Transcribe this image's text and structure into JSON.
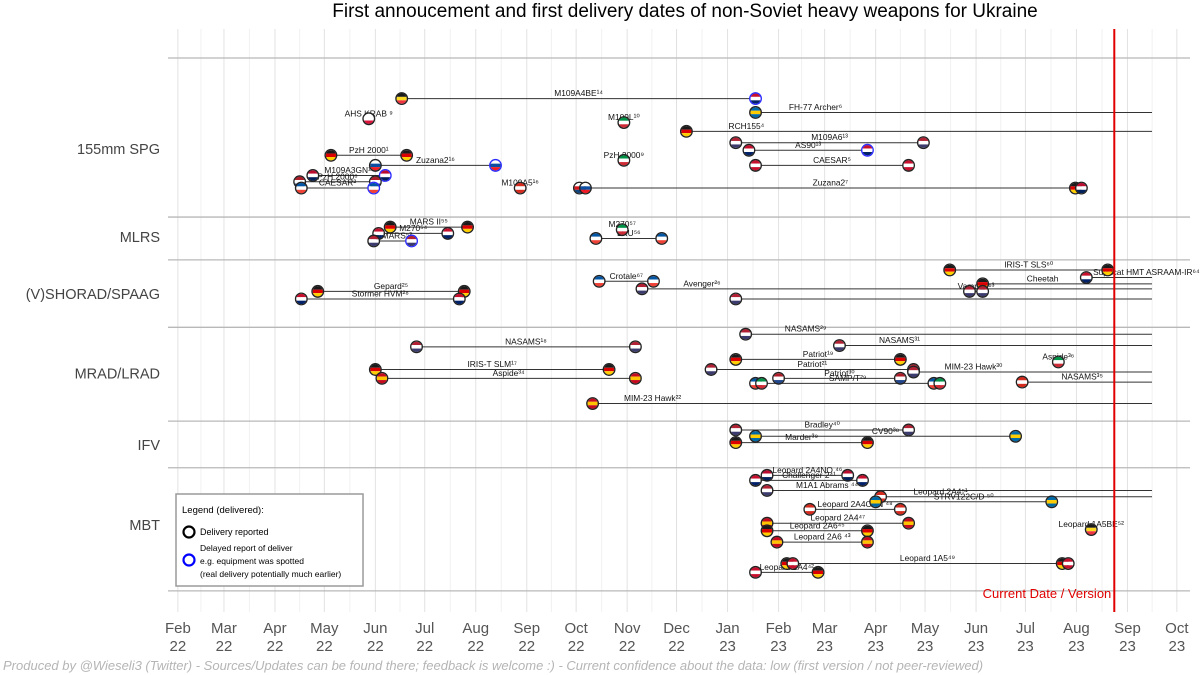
{
  "chart_data": {
    "type": "timeline",
    "title": "First annoucement and first delivery dates of non-Soviet heavy weapons for Ukraine",
    "x_ticks": [
      {
        "month": "Feb",
        "year": "22",
        "date": "2022-02-01"
      },
      {
        "month": "Mar",
        "year": "22",
        "date": "2022-03-01"
      },
      {
        "month": "Apr",
        "year": "22",
        "date": "2022-04-01"
      },
      {
        "month": "May",
        "year": "22",
        "date": "2022-05-01"
      },
      {
        "month": "Jun",
        "year": "22",
        "date": "2022-06-01"
      },
      {
        "month": "Jul",
        "year": "22",
        "date": "2022-07-01"
      },
      {
        "month": "Aug",
        "year": "22",
        "date": "2022-08-01"
      },
      {
        "month": "Sep",
        "year": "22",
        "date": "2022-09-01"
      },
      {
        "month": "Oct",
        "year": "22",
        "date": "2022-10-01"
      },
      {
        "month": "Nov",
        "year": "22",
        "date": "2022-11-01"
      },
      {
        "month": "Dec",
        "year": "22",
        "date": "2022-12-01"
      },
      {
        "month": "Jan",
        "year": "23",
        "date": "2023-01-01"
      },
      {
        "month": "Feb",
        "year": "23",
        "date": "2023-02-01"
      },
      {
        "month": "Mar",
        "year": "23",
        "date": "2023-03-01"
      },
      {
        "month": "Apr",
        "year": "23",
        "date": "2023-04-01"
      },
      {
        "month": "May",
        "year": "23",
        "date": "2023-05-01"
      },
      {
        "month": "Jun",
        "year": "23",
        "date": "2023-06-01"
      },
      {
        "month": "Jul",
        "year": "23",
        "date": "2023-07-01"
      },
      {
        "month": "Aug",
        "year": "23",
        "date": "2023-08-01"
      },
      {
        "month": "Sep",
        "year": "23",
        "date": "2023-09-01"
      },
      {
        "month": "Oct",
        "year": "23",
        "date": "2023-10-01"
      }
    ],
    "xlim": [
      "2022-01-26",
      "2023-10-09"
    ],
    "current_date": "2023-08-24",
    "current_label": "Current Date / Version",
    "categories": [
      {
        "name": "155mm SPG",
        "rows": [
          0,
          10
        ]
      },
      {
        "name": "MLRS",
        "rows": [
          10.8,
          13.2
        ]
      },
      {
        "name": "(V)SHORAD/SPAAG",
        "rows": [
          14.4,
          18.6
        ]
      },
      {
        "name": "MRAD/LRAD",
        "rows": [
          19.7,
          25.9
        ]
      },
      {
        "name": "IFV",
        "rows": [
          27.3,
          29.7
        ]
      },
      {
        "name": "MBT",
        "rows": [
          30.9,
          38.8
        ]
      }
    ],
    "flag_colors": {
      "DE": [
        "#1a1a1a",
        "#dd0000",
        "#ffce00"
      ],
      "US": [
        "#b22234",
        "#ffffff",
        "#3c3b6e"
      ],
      "UK": [
        "#c8102e",
        "#ffffff",
        "#012169"
      ],
      "FR": [
        "#0055a4",
        "#ffffff",
        "#ef4135"
      ],
      "PL": [
        "#ffffff",
        "#ffffff",
        "#dc143c"
      ],
      "NO": [
        "#ba0c2f",
        "#ffffff",
        "#00205b"
      ],
      "SE": [
        "#006aa7",
        "#fecc00",
        "#006aa7"
      ],
      "ES": [
        "#c60b1e",
        "#ffc400",
        "#c60b1e"
      ],
      "IT": [
        "#009246",
        "#ffffff",
        "#ce2b37"
      ],
      "CA": [
        "#d52b1e",
        "#ffffff",
        "#d52b1e"
      ],
      "NL": [
        "#ae1c28",
        "#ffffff",
        "#21468b"
      ],
      "SK": [
        "#ffffff",
        "#0b4ea2",
        "#ee1c25"
      ],
      "CZ": [
        "#ffffff",
        "#d7141a",
        "#11457e"
      ],
      "BE": [
        "#1a1a1a",
        "#fdda24",
        "#ef3340"
      ],
      "DK": [
        "#c8102e",
        "#ffffff",
        "#c8102e"
      ],
      "AU": [
        "#012169",
        "#ffffff",
        "#e4002b"
      ]
    },
    "series": [
      {
        "label": "M109A4BE¹⁴",
        "row": 1,
        "start": "2022-06-17",
        "end": "2023-01-18",
        "open": false,
        "flags": [
          "BE",
          "UK"
        ],
        "delayed": true
      },
      {
        "label": "AHS KRAB ⁹",
        "row": 2.6,
        "start": "2022-05-28",
        "end": "2022-05-28",
        "open": false,
        "flags": [
          "PL"
        ],
        "delayed": false
      },
      {
        "label": "FH-77 Archer⁶",
        "row": 2.1,
        "start": "2023-01-18",
        "end": null,
        "open": true,
        "flags": [
          "SE"
        ],
        "delayed": false
      },
      {
        "label": "M109L¹⁰",
        "row": 2.9,
        "start": "2022-10-30",
        "end": "2022-10-30",
        "open": false,
        "flags": [
          "IT"
        ],
        "delayed": true
      },
      {
        "label": "RCH155⁴",
        "row": 3.6,
        "start": "2022-12-07",
        "end": null,
        "open": true,
        "flags": [
          "DE"
        ],
        "delayed": false
      },
      {
        "label": "M109A6¹³",
        "row": 4.5,
        "start": "2023-01-06",
        "end": "2023-04-30",
        "open": false,
        "flags": [
          "US",
          "US"
        ],
        "delayed": false
      },
      {
        "label": "AS90¹³",
        "row": 5.1,
        "start": "2023-01-14",
        "end": "2023-03-27",
        "open": false,
        "flags": [
          "UK",
          "UK"
        ],
        "delayed": true
      },
      {
        "label": "PzH 2000¹",
        "row": 5.5,
        "start": "2022-05-05",
        "end": "2022-06-20",
        "open": false,
        "flags": [
          "DE",
          "DE"
        ],
        "delayed": false
      },
      {
        "label": "PzH 2000⁹",
        "row": 5.9,
        "start": "2022-10-30",
        "end": "2022-10-30",
        "open": false,
        "flags": [
          "IT"
        ],
        "delayed": true
      },
      {
        "label": "Zuzana2¹⁶",
        "row": 6.3,
        "start": "2022-06-01",
        "end": "2022-08-13",
        "open": false,
        "flags": [
          "SK",
          "SK"
        ],
        "delayed": true
      },
      {
        "label": "CAESAR⁵",
        "row": 6.3,
        "start": "2023-01-18",
        "end": "2023-04-21",
        "open": false,
        "flags": [
          "DK",
          "DK"
        ],
        "delayed": false
      },
      {
        "label": "M109A3GN¹³",
        "row": 7.1,
        "start": "2022-04-24",
        "end": "2022-06-07",
        "open": false,
        "flags": [
          "NO",
          "NO"
        ],
        "delayed": true
      },
      {
        "label": "PzH 2000⁸",
        "row": 7.6,
        "start": "2022-04-16",
        "end": "2022-06-01",
        "open": false,
        "flags": [
          "NL",
          "NL"
        ],
        "delayed": false
      },
      {
        "label": "CAESAR²",
        "row": 8.1,
        "start": "2022-04-17",
        "end": "2022-05-31",
        "open": false,
        "flags": [
          "FR",
          "FR"
        ],
        "delayed": true
      },
      {
        "label": "M109A5¹⁶",
        "row": 8.1,
        "start": "2022-08-28",
        "end": "2022-08-28",
        "open": false,
        "flags": [
          "CA"
        ],
        "delayed": false
      },
      {
        "label": "Zuzana2⁷",
        "row": 8.1,
        "start": "2022-10-03",
        "end": "2023-08-04",
        "open": false,
        "flags": [
          "CZ",
          "SK",
          "DE",
          "NO"
        ],
        "delayed": false
      },
      {
        "label": "MARS II⁵⁵",
        "row": 11.2,
        "start": "2022-06-10",
        "end": "2022-07-27",
        "open": false,
        "flags": [
          "DE",
          "DE"
        ],
        "delayed": false
      },
      {
        "label": "M270⁵⁴",
        "row": 11.7,
        "start": "2022-06-03",
        "end": "2022-07-15",
        "open": false,
        "flags": [
          "UK",
          "UK"
        ],
        "delayed": false
      },
      {
        "label": "HIMARS⁵³",
        "row": 12.3,
        "start": "2022-05-31",
        "end": "2022-06-23",
        "open": false,
        "flags": [
          "US",
          "US"
        ],
        "delayed": true
      },
      {
        "label": "M270⁵⁷",
        "row": 11.4,
        "start": "2022-10-29",
        "end": "2022-10-29",
        "open": false,
        "flags": [
          "IT"
        ],
        "delayed": false
      },
      {
        "label": "LRU⁵⁶",
        "row": 12.1,
        "start": "2022-10-13",
        "end": "2022-11-22",
        "open": false,
        "flags": [
          "FR",
          "FR"
        ],
        "delayed": false
      },
      {
        "label": "IRIS-T SLS⁶⁰",
        "row": 14.6,
        "start": "2023-05-16",
        "end": "2023-08-20",
        "open": false,
        "flags": [
          "DE",
          "DE"
        ],
        "delayed": false
      },
      {
        "label": "Supacat HMT ASRAAM-IR⁶⁴",
        "row": 15.2,
        "start": "2023-08-07",
        "end": null,
        "open": true,
        "flags": [
          "UK"
        ],
        "delayed": true
      },
      {
        "label": "Cheetah",
        "row": 15.7,
        "start": "2023-06-05",
        "end": null,
        "open": true,
        "flags": [
          "DE"
        ],
        "delayed": false
      },
      {
        "label": "Crotale⁶⁷",
        "row": 15.5,
        "start": "2022-10-15",
        "end": "2022-11-17",
        "open": false,
        "flags": [
          "FR",
          "FR"
        ],
        "delayed": false
      },
      {
        "label": "Avenger²⁶",
        "row": 16.1,
        "start": "2022-11-10",
        "end": null,
        "open": true,
        "flags": [
          "US"
        ],
        "delayed": false
      },
      {
        "label": "Gepard²⁵",
        "row": 16.3,
        "start": "2022-04-27",
        "end": "2022-07-25",
        "open": false,
        "flags": [
          "DE",
          "DE"
        ],
        "delayed": false
      },
      {
        "label": "Vampire⁶³",
        "row": 16.3,
        "start": "2023-05-28",
        "end": "2023-06-05",
        "open": false,
        "flags": [
          "US",
          "US"
        ],
        "delayed": false
      },
      {
        "label": "Stormer HVM²⁸",
        "row": 16.9,
        "start": "2022-04-17",
        "end": "2022-07-22",
        "open": false,
        "flags": [
          "UK",
          "UK"
        ],
        "delayed": false
      },
      {
        "label": "",
        "row": 16.9,
        "start": "2023-01-06",
        "end": null,
        "open": true,
        "flags": [
          "US"
        ],
        "delayed": false
      },
      {
        "label": "NASAMS²⁹",
        "row": 19.7,
        "start": "2023-01-12",
        "end": null,
        "open": true,
        "flags": [
          "US"
        ],
        "delayed": false
      },
      {
        "label": "NASAMS³¹",
        "row": 20.6,
        "start": "2023-03-10",
        "end": null,
        "open": true,
        "flags": [
          "US"
        ],
        "delayed": false
      },
      {
        "label": "NASAMS¹⁸",
        "row": 20.7,
        "start": "2022-06-26",
        "end": "2022-11-06",
        "open": false,
        "flags": [
          "US",
          "US"
        ],
        "delayed": false
      },
      {
        "label": "Patriot¹⁹",
        "row": 21.7,
        "start": "2023-01-06",
        "end": "2023-04-16",
        "open": false,
        "flags": [
          "DE",
          "DE"
        ],
        "delayed": false
      },
      {
        "label": "Aspide³⁶",
        "row": 21.9,
        "start": "2023-07-21",
        "end": "2023-07-21",
        "open": false,
        "flags": [
          "IT"
        ],
        "delayed": true
      },
      {
        "label": "IRIS-T SLM¹⁷",
        "row": 22.5,
        "start": "2022-06-01",
        "end": "2022-10-21",
        "open": false,
        "flags": [
          "DE",
          "DE"
        ],
        "delayed": false
      },
      {
        "label": "Patriot²¹",
        "row": 22.5,
        "start": "2022-12-22",
        "end": "2023-04-24",
        "open": false,
        "flags": [
          "US",
          "US"
        ],
        "delayed": false
      },
      {
        "label": "MIM-23 Hawk³⁰",
        "row": 22.7,
        "start": "2023-04-24",
        "end": null,
        "open": true,
        "flags": [
          "US"
        ],
        "delayed": false
      },
      {
        "label": "Aspide³⁴",
        "row": 23.2,
        "start": "2022-06-05",
        "end": "2022-11-06",
        "open": false,
        "flags": [
          "ES",
          "ES"
        ],
        "delayed": false
      },
      {
        "label": "Patriot³⁰",
        "row": 23.2,
        "start": "2023-02-01",
        "end": "2023-04-16",
        "open": false,
        "flags": [
          "NL",
          "NL"
        ],
        "delayed": false
      },
      {
        "label": "NASAMS³⁵",
        "row": 23.5,
        "start": "2023-06-29",
        "end": null,
        "open": true,
        "flags": [
          "CA"
        ],
        "delayed": false
      },
      {
        "label": "SAMP/T²⁹",
        "row": 23.6,
        "start": "2023-01-18",
        "end": "2023-05-10",
        "open": false,
        "flags": [
          "FR",
          "IT",
          "FR",
          "IT"
        ],
        "delayed": false
      },
      {
        "label": "MIM-23 Hawk²²",
        "row": 25.2,
        "start": "2022-10-11",
        "end": null,
        "open": true,
        "flags": [
          "ES"
        ],
        "delayed": false
      },
      {
        "label": "Bradley⁴⁰",
        "row": 27.3,
        "start": "2023-01-06",
        "end": "2023-04-21",
        "open": false,
        "flags": [
          "US",
          "US"
        ],
        "delayed": false
      },
      {
        "label": "CV90³⁸",
        "row": 27.8,
        "start": "2023-01-18",
        "end": "2023-06-25",
        "open": false,
        "flags": [
          "SE",
          "SE"
        ],
        "delayed": false
      },
      {
        "label": "Marder³⁹",
        "row": 28.3,
        "start": "2023-01-06",
        "end": "2023-03-27",
        "open": false,
        "flags": [
          "DE",
          "DE"
        ],
        "delayed": false
      },
      {
        "label": "Leopard 2A4NO ⁴⁶",
        "row": 30.9,
        "start": "2023-01-25",
        "end": "2023-03-15",
        "open": false,
        "flags": [
          "NO",
          "NO"
        ],
        "delayed": false
      },
      {
        "label": "Challenger 2⁴¹",
        "row": 31.3,
        "start": "2023-01-18",
        "end": "2023-03-24",
        "open": false,
        "flags": [
          "UK",
          "UK"
        ],
        "delayed": false
      },
      {
        "label": "M1A1 Abrams ⁴⁴",
        "row": 32.1,
        "start": "2023-01-25",
        "end": null,
        "open": true,
        "flags": [
          "US"
        ],
        "delayed": false
      },
      {
        "label": "Leopard 2A4⁵¹",
        "row": 32.6,
        "start": "2023-04-04",
        "end": null,
        "open": true,
        "flags": [
          "CA"
        ],
        "delayed": false
      },
      {
        "label": "STRV122C/D ⁵⁰",
        "row": 33.0,
        "start": "2023-04-01",
        "end": "2023-07-17",
        "open": false,
        "flags": [
          "SE",
          "SE"
        ],
        "delayed": false
      },
      {
        "label": "Leopard 2A4CAN ⁴⁸",
        "row": 33.6,
        "start": "2023-02-20",
        "end": "2023-04-16",
        "open": false,
        "flags": [
          "CA",
          "CA"
        ],
        "delayed": false
      },
      {
        "label": "Leopard 2A4⁴⁷",
        "row": 34.7,
        "start": "2023-01-25",
        "end": "2023-04-21",
        "open": false,
        "flags": [
          "ES",
          "ES"
        ],
        "delayed": false
      },
      {
        "label": "Leopard 2A6⁴⁵",
        "row": 35.3,
        "start": "2023-01-25",
        "end": "2023-03-27",
        "open": false,
        "flags": [
          "DE",
          "DE"
        ],
        "delayed": false
      },
      {
        "label": "Leopard 1A5BE⁵²",
        "row": 35.2,
        "start": "2023-08-10",
        "end": "2023-08-10",
        "open": false,
        "flags": [
          "BE"
        ],
        "delayed": false
      },
      {
        "label": "Leopard 2A6 ⁴³",
        "row": 36.2,
        "start": "2023-01-31",
        "end": "2023-03-27",
        "open": false,
        "flags": [
          "ES",
          "ES"
        ],
        "delayed": false
      },
      {
        "label": "Leopard 1A5⁴⁹",
        "row": 37.9,
        "start": "2023-02-06",
        "end": "2023-07-27",
        "open": false,
        "flags": [
          "DE",
          "DK",
          "DE",
          "DK"
        ],
        "delayed": false
      },
      {
        "label": "Leopard 2A4⁴²",
        "row": 38.6,
        "start": "2023-01-18",
        "end": "2023-02-25",
        "open": false,
        "flags": [
          "DK",
          "DE"
        ],
        "delayed": false
      }
    ],
    "legend": {
      "title": "Legend (delivered):",
      "item1": "Delivery reported",
      "item2_line1": "Delayed report of deliver",
      "item2_line2": "e.g. equipment was spotted",
      "item2_line3": "(real delivery potentially much earlier)"
    },
    "footer": "Produced by @Wieseli3 (Twitter) - Sources/Updates can be found there; feedback is welcome :) - Current confidence about the data: low (first version / not peer-reviewed)"
  }
}
